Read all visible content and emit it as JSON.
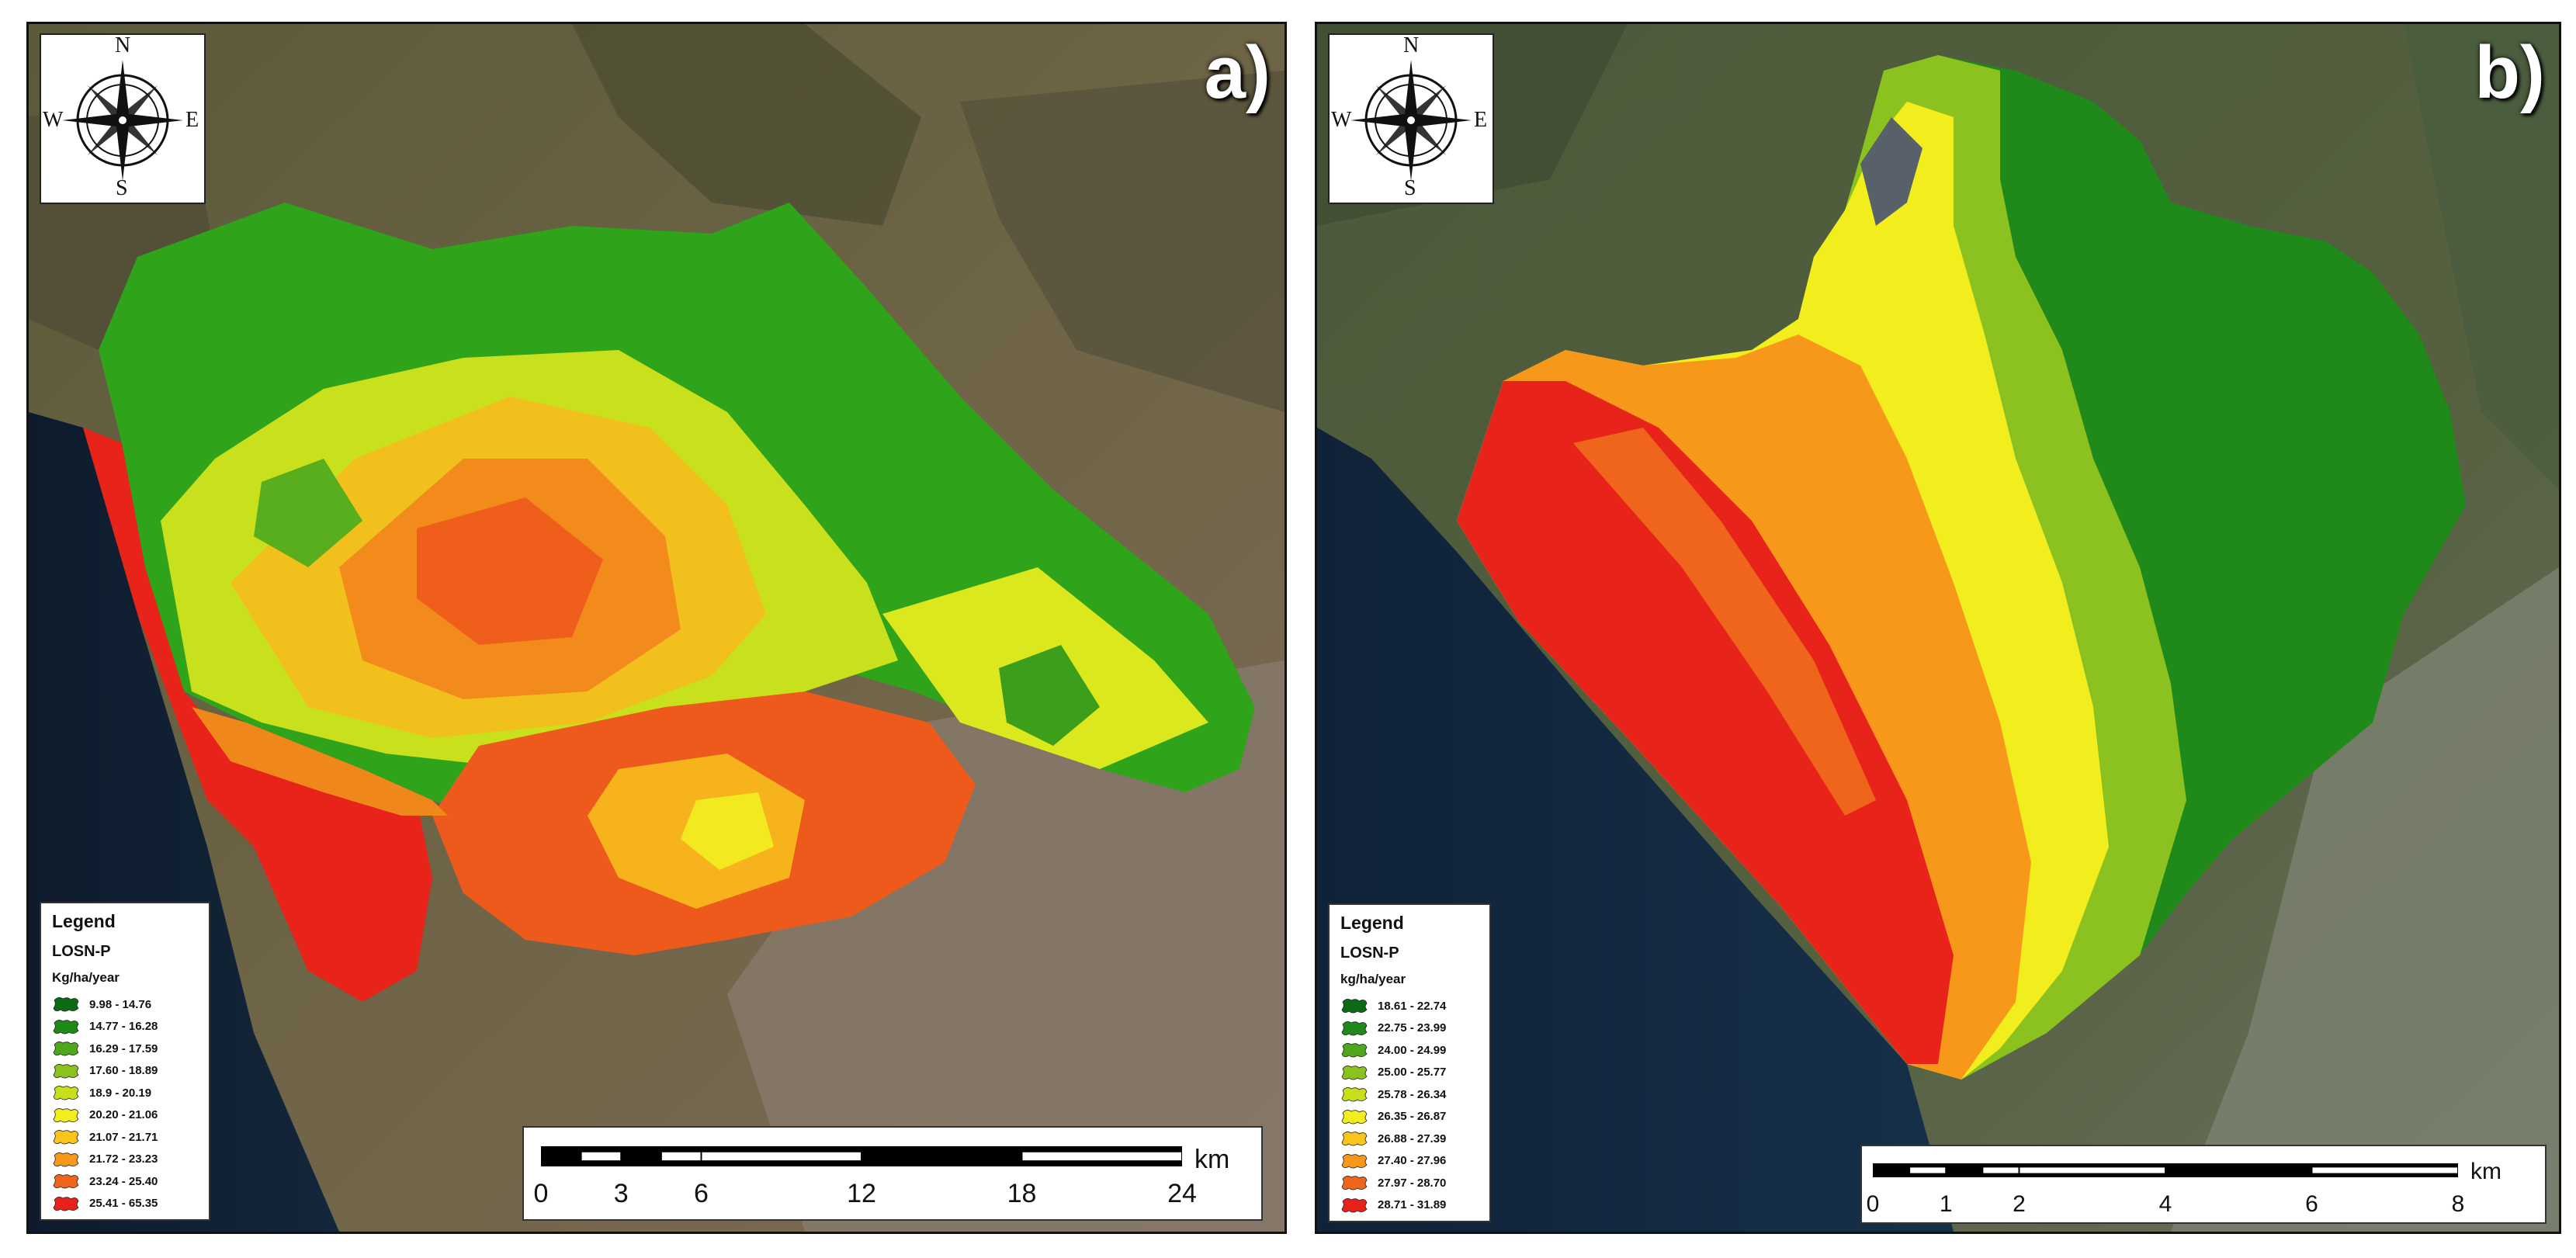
{
  "panel_a": {
    "label": "a)",
    "compass": {
      "n": "N",
      "s": "S",
      "e": "E",
      "w": "W"
    },
    "legend": {
      "title": "Legend",
      "layer": "LOSN-P",
      "units": "Kg/ha/year",
      "classes": [
        {
          "label": "9.98 - 14.76",
          "color": "#0b6b14"
        },
        {
          "label": "14.77 - 16.28",
          "color": "#1f8a1a"
        },
        {
          "label": "16.29 - 17.59",
          "color": "#4fa81c"
        },
        {
          "label": "17.60 - 18.89",
          "color": "#8cc21f"
        },
        {
          "label": "18.9 - 20.19",
          "color": "#c8e01c"
        },
        {
          "label": "20.20 - 21.06",
          "color": "#f2ee1e"
        },
        {
          "label": "21.07 - 21.71",
          "color": "#f9c51c"
        },
        {
          "label": "21.72 - 23.23",
          "color": "#f7981b"
        },
        {
          "label": "23.24 - 25.40",
          "color": "#f0651c"
        },
        {
          "label": "25.41 - 65.35",
          "color": "#e8221a"
        }
      ]
    },
    "scale": {
      "ticks": [
        "0",
        "3",
        "6",
        "12",
        "18",
        "24"
      ],
      "unit": "km"
    }
  },
  "panel_b": {
    "label": "b)",
    "compass": {
      "n": "N",
      "s": "S",
      "e": "E",
      "w": "W"
    },
    "legend": {
      "title": "Legend",
      "layer": "LOSN-P",
      "units": "kg/ha/year",
      "classes": [
        {
          "label": "18.61 - 22.74",
          "color": "#0b6b14"
        },
        {
          "label": "22.75 - 23.99",
          "color": "#1f8a1a"
        },
        {
          "label": "24.00 - 24.99",
          "color": "#4fa81c"
        },
        {
          "label": "25.00 - 25.77",
          "color": "#8cc21f"
        },
        {
          "label": "25.78 - 26.34",
          "color": "#c8e01c"
        },
        {
          "label": "26.35 - 26.87",
          "color": "#f2ee1e"
        },
        {
          "label": "26.88 - 27.39",
          "color": "#f9c51c"
        },
        {
          "label": "27.40 - 27.96",
          "color": "#f7981b"
        },
        {
          "label": "27.97 - 28.70",
          "color": "#f0651c"
        },
        {
          "label": "28.71 - 31.89",
          "color": "#e8221a"
        }
      ]
    },
    "scale": {
      "ticks": [
        "0",
        "1",
        "2",
        "4",
        "6",
        "8"
      ],
      "unit": "km"
    }
  }
}
